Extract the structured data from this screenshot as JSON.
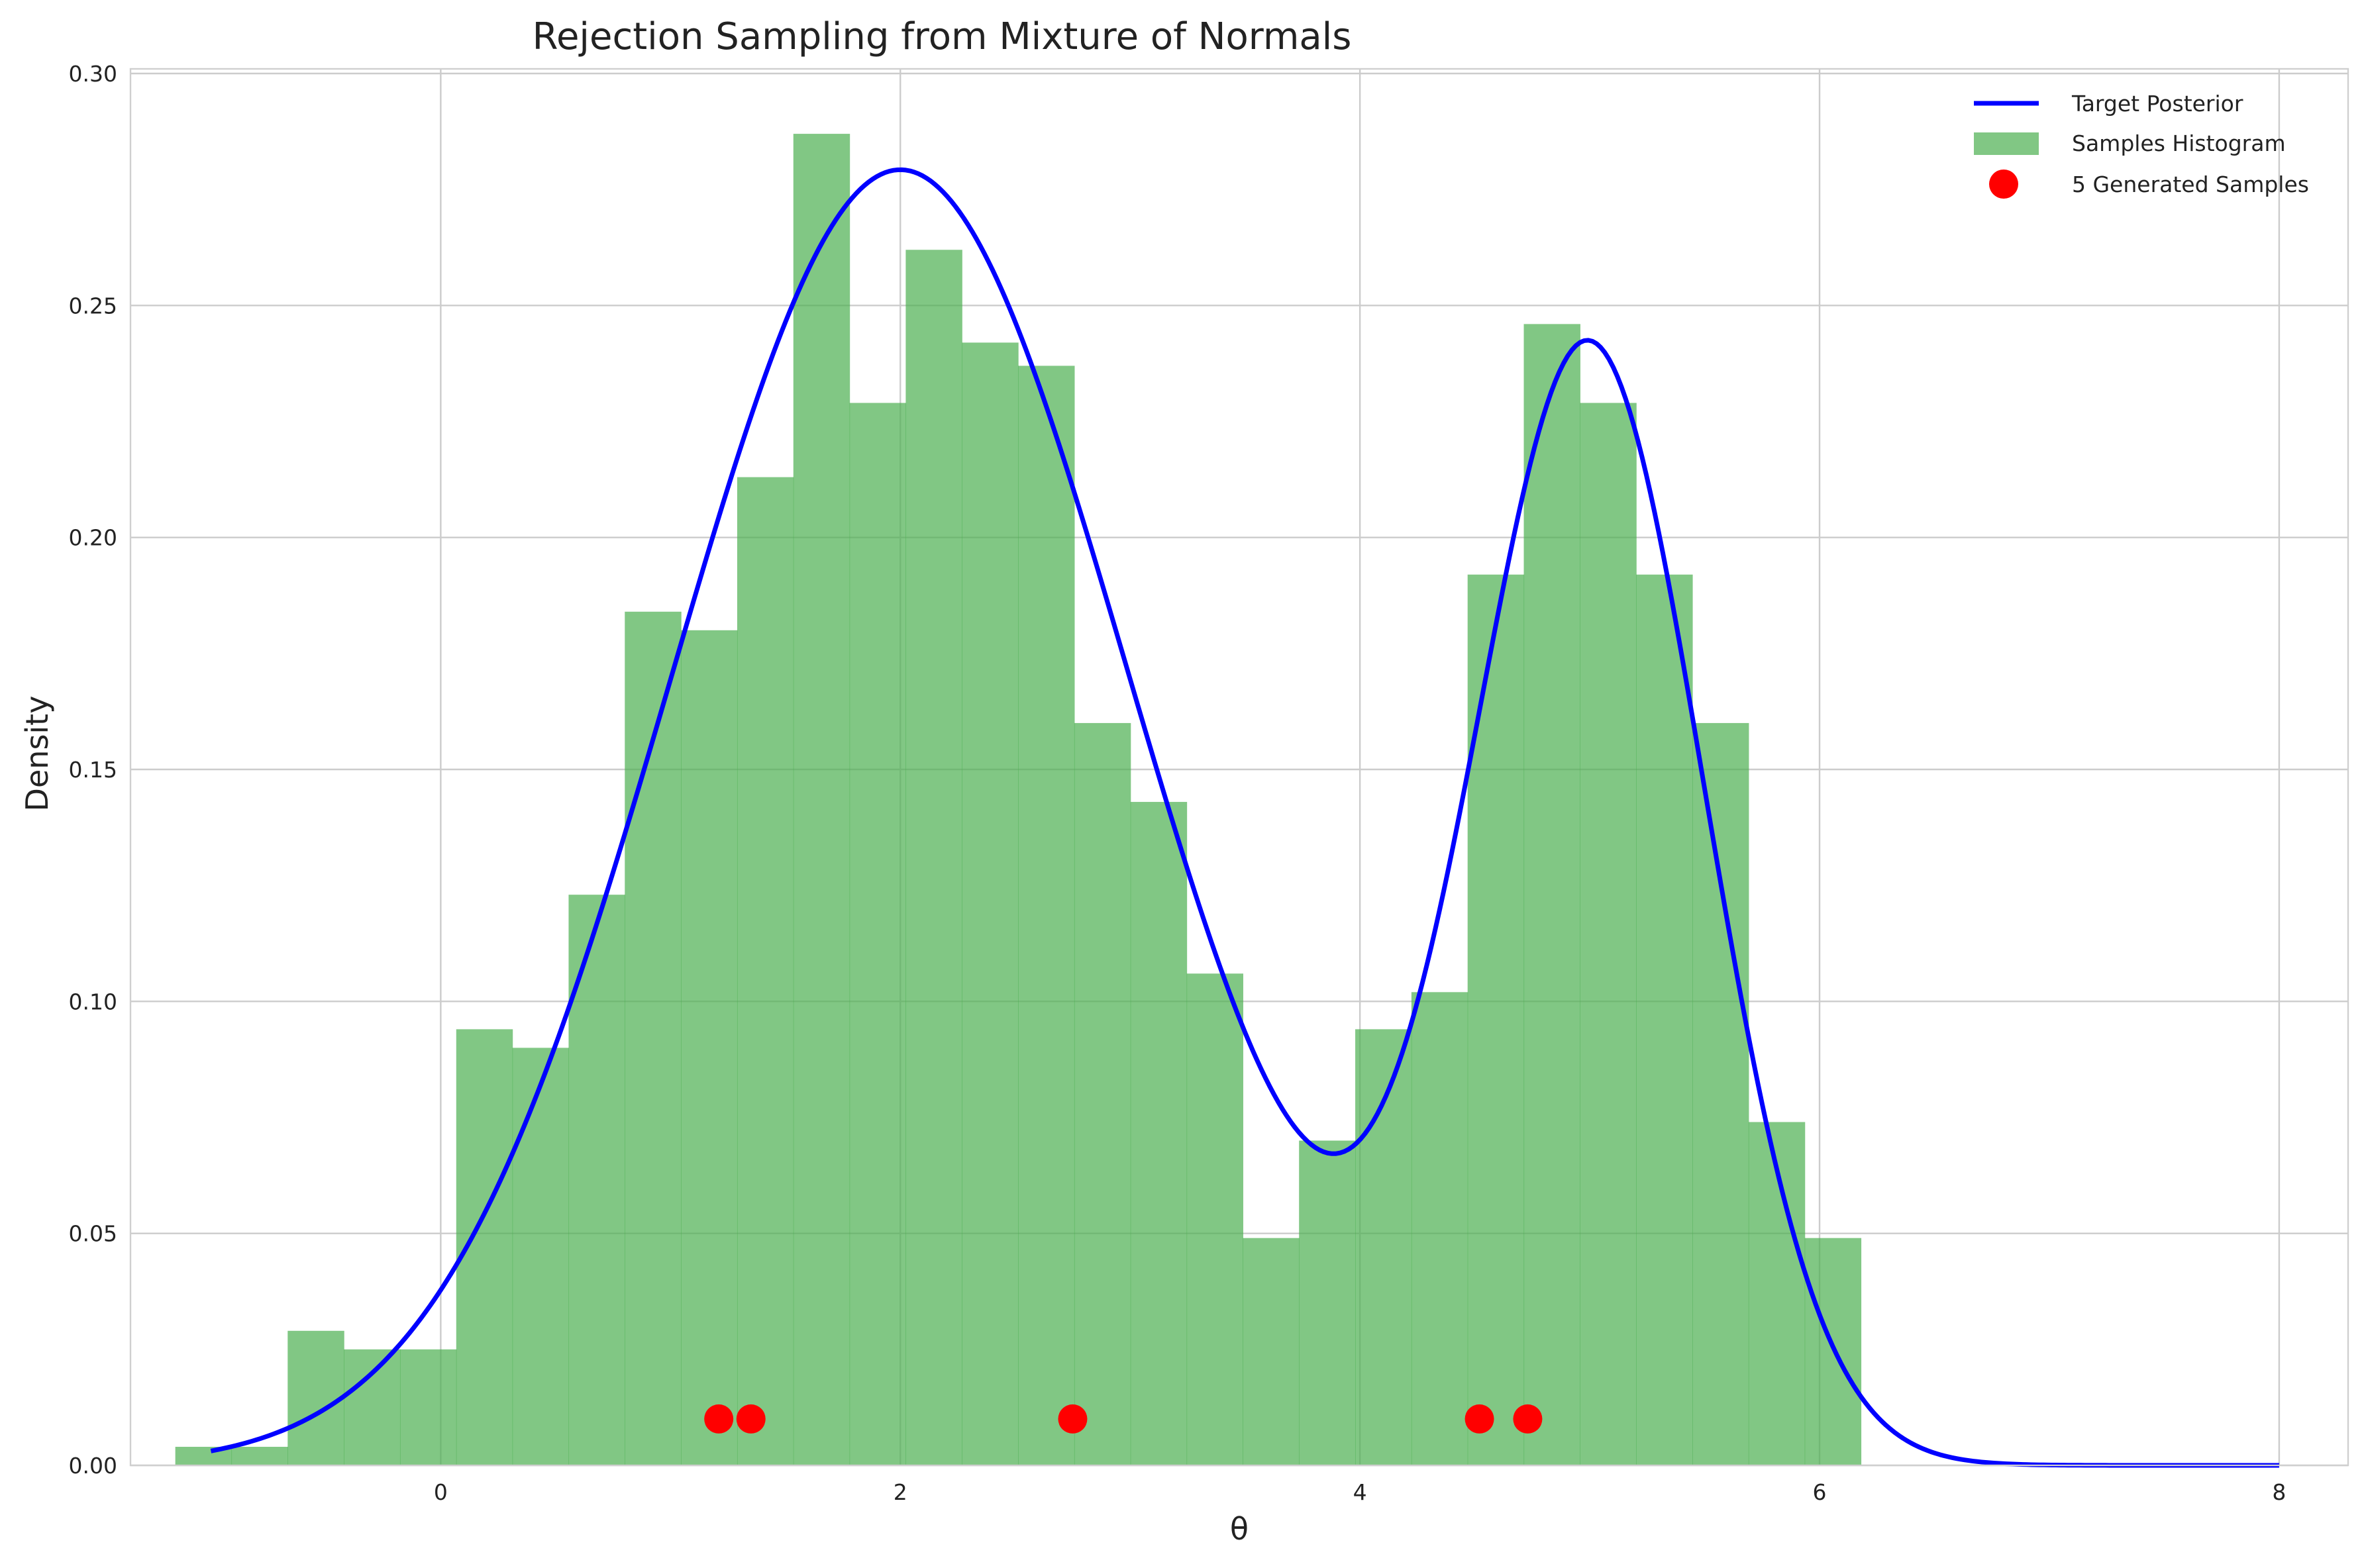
{
  "chart_data": {
    "type": "bar",
    "title": "Rejection Sampling from Mixture of Normals",
    "xlabel": "θ",
    "ylabel": "Density",
    "xlim": [
      -1.35,
      8.3
    ],
    "ylim": [
      0.0,
      0.301
    ],
    "xticks": [
      0,
      2,
      4,
      6,
      8
    ],
    "xtick_labels": [
      "0",
      "2",
      "4",
      "6",
      "8"
    ],
    "yticks": [
      0.0,
      0.05,
      0.1,
      0.15,
      0.2,
      0.25,
      0.3
    ],
    "ytick_labels": [
      "0.00",
      "0.05",
      "0.10",
      "0.15",
      "0.20",
      "0.25",
      "0.30"
    ],
    "grid": true,
    "legend_position": "top-right",
    "histogram": {
      "name": "Samples Histogram",
      "color": "#4caf50",
      "alpha": 0.7,
      "bin_start": -1.155,
      "bin_width": 0.2445,
      "values": [
        0.004,
        0.004,
        0.029,
        0.025,
        0.025,
        0.094,
        0.09,
        0.123,
        0.184,
        0.18,
        0.213,
        0.287,
        0.229,
        0.262,
        0.242,
        0.237,
        0.16,
        0.143,
        0.106,
        0.049,
        0.07,
        0.094,
        0.102,
        0.192,
        0.246,
        0.229,
        0.192,
        0.16,
        0.074,
        0.049
      ]
    },
    "curve": {
      "name": "Target Posterior",
      "color": "#0000ff",
      "x_range": [
        -1.0,
        8.0
      ],
      "components": [
        {
          "weight": 0.7,
          "mean": 2.0,
          "sd": 1.0
        },
        {
          "weight": 0.3,
          "mean": 5.0,
          "sd": 0.5
        }
      ]
    },
    "points": {
      "name": "5 Generated Samples",
      "color": "#ff0000",
      "x": [
        1.21,
        1.35,
        2.75,
        4.52,
        4.73
      ],
      "y": [
        0.01,
        0.01,
        0.01,
        0.01,
        0.01
      ]
    }
  }
}
